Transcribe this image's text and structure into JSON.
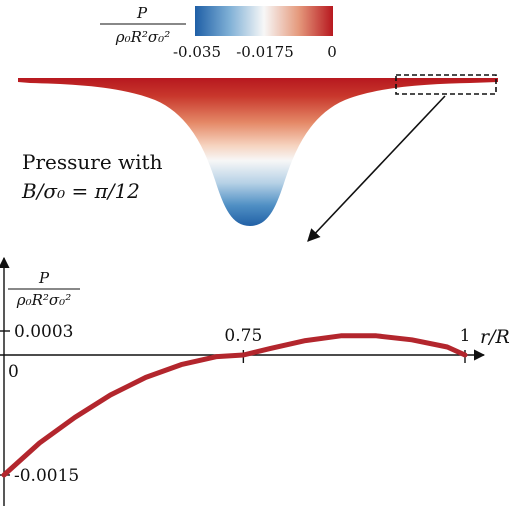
{
  "colorbar": {
    "label_top": "P",
    "label_bottom": "ρ₀R²σ₀²",
    "tick_labels": [
      "-0.035",
      "-0.0175",
      "0"
    ],
    "ticks": [
      -0.035,
      -0.0175,
      0
    ],
    "colors": {
      "min": "#1f5fa6",
      "mid": "#f7f7f7",
      "max": "#b7181f"
    }
  },
  "annotation": {
    "line1": "Pressure with",
    "line2": "B/σ₀ = π/12"
  },
  "chart_data": [
    {
      "type": "heatmap",
      "description": "Pressure field over a gaussian-shaped droplet cross-section",
      "colormap": "diverging blue-white-red",
      "value_range": [
        -0.035,
        0
      ],
      "min_at": "bottom of the well",
      "max_at": "top surface / edges"
    },
    {
      "type": "line",
      "title": "",
      "xlabel": "r/R",
      "ylabel": "P / ρ₀R²σ₀²",
      "x_ticks": [
        0.75,
        1
      ],
      "x_tick_labels": [
        "0.75",
        "1"
      ],
      "y_ticks": [
        0.0003,
        -0.0015
      ],
      "y_tick_labels": [
        "0.0003",
        "-0.0015"
      ],
      "origin_label": "0",
      "xlim": [
        0.48,
        1.03
      ],
      "ylim": [
        -0.0022,
        0.001
      ],
      "series": [
        {
          "color": "#b3262d",
          "x": [
            0.48,
            0.52,
            0.56,
            0.6,
            0.64,
            0.68,
            0.72,
            0.75,
            0.78,
            0.82,
            0.86,
            0.9,
            0.94,
            0.98,
            1.0
          ],
          "y": [
            -0.0015,
            -0.0011,
            -0.00078,
            -0.0005,
            -0.00028,
            -0.00012,
            -2e-05,
            0.0,
            8e-05,
            0.00018,
            0.00024,
            0.00024,
            0.00019,
            0.0001,
            0.0
          ]
        }
      ]
    }
  ]
}
